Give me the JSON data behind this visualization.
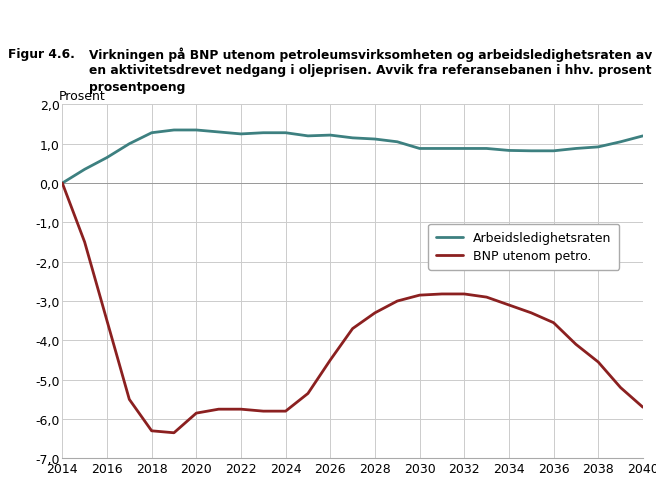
{
  "title_fig": "Figur 4.6.",
  "title_line1": "Virkningen på BNP utenom petroleumsvirksomheten og arbeidsledighetsraten av",
  "title_line2": "en aktivitetsdrevet nedgang i oljeprisen. Avvik fra referansebanen i hhv. prosent og",
  "title_line3": "prosentpoeng",
  "ylabel": "Prosent",
  "xlim": [
    2014,
    2040
  ],
  "ylim": [
    -7.0,
    2.0
  ],
  "yticks": [
    -7.0,
    -6.0,
    -5.0,
    -4.0,
    -3.0,
    -2.0,
    -1.0,
    0.0,
    1.0,
    2.0
  ],
  "xticks": [
    2014,
    2016,
    2018,
    2020,
    2022,
    2024,
    2026,
    2028,
    2030,
    2032,
    2034,
    2036,
    2038,
    2040
  ],
  "arb_x": [
    2014,
    2015,
    2016,
    2017,
    2018,
    2019,
    2020,
    2021,
    2022,
    2023,
    2024,
    2025,
    2026,
    2027,
    2028,
    2029,
    2030,
    2031,
    2032,
    2033,
    2034,
    2035,
    2036,
    2037,
    2038,
    2039,
    2040
  ],
  "arb_y": [
    0.0,
    0.35,
    0.65,
    1.0,
    1.28,
    1.35,
    1.35,
    1.3,
    1.25,
    1.28,
    1.28,
    1.2,
    1.22,
    1.15,
    1.12,
    1.05,
    0.88,
    0.88,
    0.88,
    0.88,
    0.83,
    0.82,
    0.82,
    0.88,
    0.92,
    1.05,
    1.2
  ],
  "bnp_x": [
    2014,
    2015,
    2016,
    2017,
    2018,
    2019,
    2020,
    2021,
    2022,
    2023,
    2024,
    2025,
    2026,
    2027,
    2028,
    2029,
    2030,
    2031,
    2032,
    2033,
    2034,
    2035,
    2036,
    2037,
    2038,
    2039,
    2040
  ],
  "bnp_y": [
    0.0,
    -1.5,
    -3.5,
    -5.5,
    -6.3,
    -6.35,
    -5.85,
    -5.75,
    -5.75,
    -5.8,
    -5.8,
    -5.35,
    -4.5,
    -3.7,
    -3.3,
    -3.0,
    -2.85,
    -2.82,
    -2.82,
    -2.9,
    -3.1,
    -3.3,
    -3.55,
    -4.1,
    -4.55,
    -5.2,
    -5.7
  ],
  "arb_color": "#3d8080",
  "bnp_color": "#8b2020",
  "arb_label": "Arbeidsledighetsraten",
  "bnp_label": "BNP utenom petro.",
  "background_color": "#ffffff",
  "grid_color": "#cccccc",
  "line_width": 2.0,
  "title_sep_color": "#2e4057",
  "title_fontsize": 8.8,
  "tick_fontsize": 9.0
}
